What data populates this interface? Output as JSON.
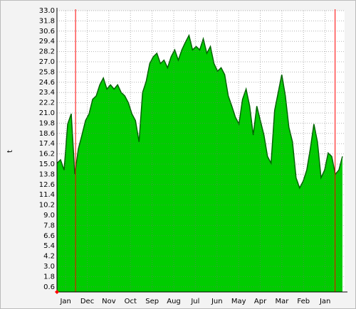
{
  "chart_data": {
    "type": "area",
    "ylabel": "t",
    "color": "#00cc00",
    "line_color": "#006600",
    "grid": true,
    "xlim": [
      -0.4,
      12.9
    ],
    "ylim": [
      0,
      33
    ],
    "xticks": [
      {
        "value": 0,
        "label": "Jan"
      },
      {
        "value": 1,
        "label": "Dec"
      },
      {
        "value": 2,
        "label": "Nov"
      },
      {
        "value": 3,
        "label": "Oct"
      },
      {
        "value": 4,
        "label": "Sep"
      },
      {
        "value": 5,
        "label": "Aug"
      },
      {
        "value": 6,
        "label": "Jul"
      },
      {
        "value": 7,
        "label": "Jun"
      },
      {
        "value": 8,
        "label": "May"
      },
      {
        "value": 9,
        "label": "Apr"
      },
      {
        "value": 10,
        "label": "Mar"
      },
      {
        "value": 11,
        "label": "Feb"
      },
      {
        "value": 12,
        "label": "Jan"
      }
    ],
    "yticks": [
      0.6,
      1.8,
      {
        "value": 3,
        "label": "3.0"
      },
      4.2,
      5.4,
      6.6,
      7.8,
      {
        "value": 9,
        "label": "9.0"
      },
      10.2,
      11.4,
      12.6,
      13.8,
      {
        "value": 15,
        "label": "15.0"
      },
      16.2,
      17.4,
      18.6,
      19.8,
      {
        "value": 21,
        "label": "21.0"
      },
      22.2,
      23.4,
      24.6,
      25.8,
      {
        "value": 27,
        "label": "27.0"
      },
      28.2,
      29.4,
      30.6,
      31.8,
      {
        "value": 33,
        "label": "33.0"
      }
    ],
    "vlines": [
      0.46,
      12.46
    ],
    "vline_color": "#ff0000",
    "x": [
      -0.4,
      -0.235,
      -0.07,
      0.095,
      0.26,
      0.425,
      0.59,
      0.755,
      0.92,
      1.085,
      1.25,
      1.415,
      1.58,
      1.745,
      1.91,
      2.075,
      2.24,
      2.405,
      2.57,
      2.735,
      2.9,
      3.065,
      3.23,
      3.395,
      3.56,
      3.725,
      3.89,
      4.055,
      4.22,
      4.385,
      4.55,
      4.715,
      4.88,
      5.045,
      5.21,
      5.375,
      5.54,
      5.705,
      5.87,
      6.035,
      6.2,
      6.365,
      6.53,
      6.695,
      6.86,
      7.025,
      7.19,
      7.355,
      7.52,
      7.685,
      7.85,
      8.015,
      8.18,
      8.345,
      8.51,
      8.675,
      8.84,
      9.005,
      9.17,
      9.335,
      9.5,
      9.665,
      9.83,
      9.995,
      10.16,
      10.325,
      10.49,
      10.655,
      10.82,
      10.985,
      11.15,
      11.315,
      11.48,
      11.645,
      11.81,
      11.975,
      12.14,
      12.305,
      12.47,
      12.635,
      12.8
    ],
    "values": [
      15.1,
      15.5,
      14.3,
      19.7,
      20.9,
      13.8,
      16.8,
      18.4,
      20.1,
      20.9,
      22.6,
      23.0,
      24.3,
      25.1,
      23.8,
      24.3,
      23.8,
      24.3,
      23.4,
      23.0,
      22.2,
      20.9,
      20.1,
      17.6,
      23.4,
      24.7,
      26.8,
      27.6,
      28.0,
      26.8,
      27.2,
      26.3,
      27.6,
      28.4,
      27.2,
      28.4,
      29.3,
      30.1,
      28.4,
      28.8,
      28.4,
      29.7,
      28.0,
      28.8,
      26.8,
      25.9,
      26.3,
      25.5,
      23.0,
      21.8,
      20.5,
      19.7,
      22.6,
      23.8,
      21.8,
      18.4,
      21.8,
      20.1,
      18.4,
      15.9,
      15.1,
      21.3,
      23.4,
      25.5,
      23.0,
      19.3,
      17.6,
      13.4,
      12.2,
      13.0,
      14.3,
      16.8,
      19.7,
      17.6,
      13.4,
      14.3,
      16.3,
      15.9,
      13.8,
      14.3,
      15.9
    ]
  }
}
